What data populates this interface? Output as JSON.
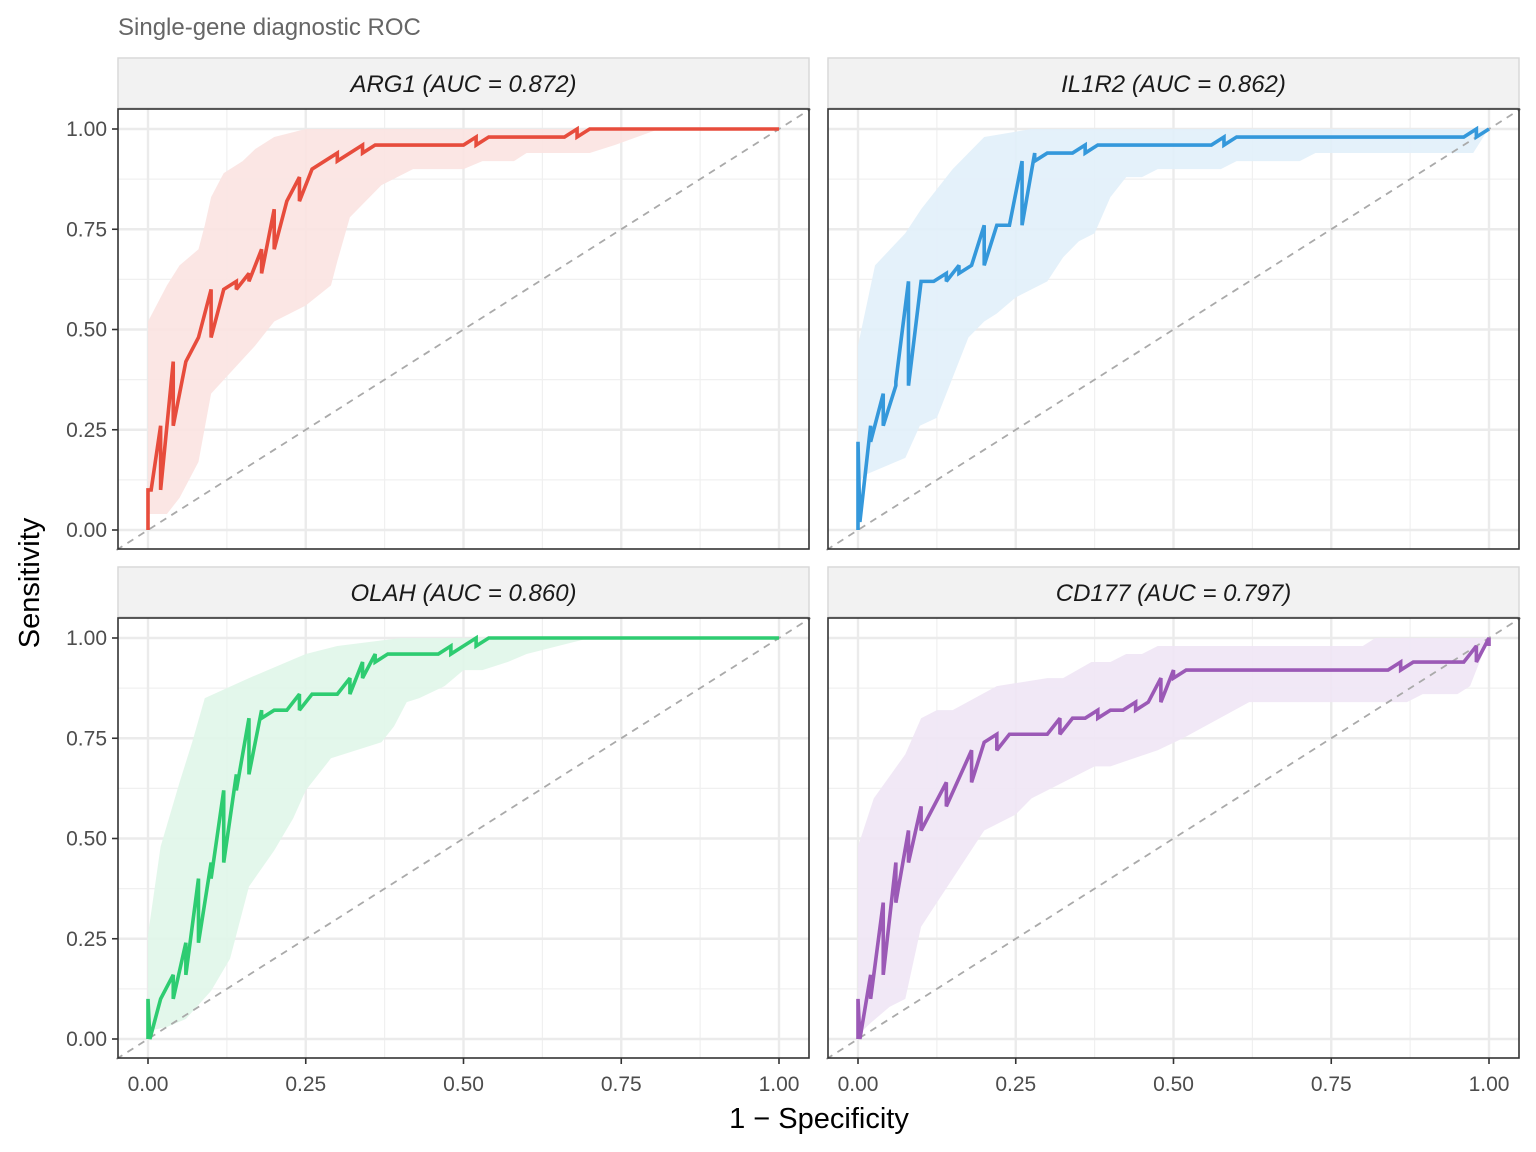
{
  "chart_data": {
    "type": "line",
    "subtitle": "Single-gene diagnostic ROC",
    "xlabel": "1 − Specificity",
    "ylabel": "Sensitivity",
    "xlim": [
      0,
      1
    ],
    "ylim": [
      0,
      1
    ],
    "x_ticks": [
      "0.00",
      "0.25",
      "0.50",
      "0.75",
      "1.00"
    ],
    "y_ticks": [
      "0.00",
      "0.25",
      "0.50",
      "0.75",
      "1.00"
    ],
    "x_tick_values": [
      0,
      0.25,
      0.5,
      0.75,
      1
    ],
    "y_tick_values": [
      0,
      0.25,
      0.5,
      0.75,
      1
    ],
    "grid": true,
    "reference_line": {
      "style": "dashed",
      "color": "#aaaaaa",
      "from": [
        0,
        0
      ],
      "to": [
        1,
        1
      ]
    },
    "panels": [
      {
        "gene": "ARG1",
        "strip_label": "ARG1 (AUC = 0.872)",
        "auc": 0.872,
        "color": "#e74c3c",
        "band_color": "#fbe3e1",
        "roc": [
          [
            0,
            0
          ],
          [
            0,
            0.1
          ],
          [
            0.005,
            0.1
          ],
          [
            0.02,
            0.26
          ],
          [
            0.02,
            0.1
          ],
          [
            0.04,
            0.42
          ],
          [
            0.04,
            0.26
          ],
          [
            0.06,
            0.42
          ],
          [
            0.08,
            0.48
          ],
          [
            0.1,
            0.6
          ],
          [
            0.1,
            0.48
          ],
          [
            0.12,
            0.6
          ],
          [
            0.14,
            0.62
          ],
          [
            0.14,
            0.6
          ],
          [
            0.16,
            0.64
          ],
          [
            0.16,
            0.62
          ],
          [
            0.18,
            0.7
          ],
          [
            0.18,
            0.64
          ],
          [
            0.2,
            0.8
          ],
          [
            0.2,
            0.7
          ],
          [
            0.22,
            0.82
          ],
          [
            0.24,
            0.88
          ],
          [
            0.24,
            0.82
          ],
          [
            0.26,
            0.9
          ],
          [
            0.28,
            0.92
          ],
          [
            0.3,
            0.94
          ],
          [
            0.3,
            0.92
          ],
          [
            0.34,
            0.96
          ],
          [
            0.34,
            0.94
          ],
          [
            0.36,
            0.96
          ],
          [
            0.5,
            0.96
          ],
          [
            0.52,
            0.98
          ],
          [
            0.52,
            0.96
          ],
          [
            0.54,
            0.98
          ],
          [
            0.66,
            0.98
          ],
          [
            0.68,
            1.0
          ],
          [
            0.68,
            0.98
          ],
          [
            0.7,
            1.0
          ],
          [
            1.0,
            1.0
          ]
        ],
        "ci_upper": [
          [
            0,
            0.52
          ],
          [
            0.03,
            0.61
          ],
          [
            0.05,
            0.66
          ],
          [
            0.08,
            0.7
          ],
          [
            0.09,
            0.76
          ],
          [
            0.1,
            0.83
          ],
          [
            0.12,
            0.89
          ],
          [
            0.15,
            0.92
          ],
          [
            0.17,
            0.95
          ],
          [
            0.2,
            0.98
          ],
          [
            0.25,
            1.0
          ],
          [
            1.0,
            1.0
          ]
        ],
        "ci_lower": [
          [
            0,
            0.04
          ],
          [
            0.03,
            0.04
          ],
          [
            0.05,
            0.08
          ],
          [
            0.08,
            0.17
          ],
          [
            0.1,
            0.34
          ],
          [
            0.17,
            0.46
          ],
          [
            0.2,
            0.52
          ],
          [
            0.25,
            0.56
          ],
          [
            0.29,
            0.61
          ],
          [
            0.3,
            0.67
          ],
          [
            0.32,
            0.78
          ],
          [
            0.37,
            0.86
          ],
          [
            0.42,
            0.9
          ],
          [
            0.5,
            0.9
          ],
          [
            0.53,
            0.92
          ],
          [
            0.58,
            0.92
          ],
          [
            0.6,
            0.94
          ],
          [
            0.7,
            0.94
          ],
          [
            0.74,
            0.96
          ],
          [
            0.81,
            1.0
          ],
          [
            1.0,
            1.0
          ]
        ]
      },
      {
        "gene": "IL1R2",
        "strip_label": "IL1R2 (AUC = 0.862)",
        "auc": 0.862,
        "color": "#3498db",
        "band_color": "#e1eff9",
        "roc": [
          [
            0,
            0
          ],
          [
            0,
            0.22
          ],
          [
            0.003,
            0.02
          ],
          [
            0.02,
            0.26
          ],
          [
            0.02,
            0.22
          ],
          [
            0.04,
            0.34
          ],
          [
            0.04,
            0.26
          ],
          [
            0.06,
            0.36
          ],
          [
            0.06,
            0.37
          ],
          [
            0.08,
            0.62
          ],
          [
            0.08,
            0.36
          ],
          [
            0.1,
            0.62
          ],
          [
            0.12,
            0.62
          ],
          [
            0.14,
            0.64
          ],
          [
            0.14,
            0.62
          ],
          [
            0.16,
            0.66
          ],
          [
            0.16,
            0.64
          ],
          [
            0.18,
            0.66
          ],
          [
            0.2,
            0.76
          ],
          [
            0.2,
            0.66
          ],
          [
            0.22,
            0.76
          ],
          [
            0.24,
            0.76
          ],
          [
            0.26,
            0.92
          ],
          [
            0.26,
            0.76
          ],
          [
            0.28,
            0.94
          ],
          [
            0.28,
            0.92
          ],
          [
            0.3,
            0.94
          ],
          [
            0.34,
            0.94
          ],
          [
            0.36,
            0.96
          ],
          [
            0.36,
            0.94
          ],
          [
            0.38,
            0.96
          ],
          [
            0.56,
            0.96
          ],
          [
            0.58,
            0.98
          ],
          [
            0.58,
            0.96
          ],
          [
            0.6,
            0.98
          ],
          [
            0.96,
            0.98
          ],
          [
            0.98,
            1.0
          ],
          [
            0.98,
            0.98
          ],
          [
            1.0,
            1.0
          ]
        ],
        "ci_upper": [
          [
            0,
            0.46
          ],
          [
            0.027,
            0.66
          ],
          [
            0.075,
            0.74
          ],
          [
            0.1,
            0.8
          ],
          [
            0.15,
            0.9
          ],
          [
            0.2,
            0.98
          ],
          [
            0.275,
            1.0
          ],
          [
            1.0,
            1.0
          ]
        ],
        "ci_lower": [
          [
            0,
            0.12
          ],
          [
            0.015,
            0.14
          ],
          [
            0.075,
            0.18
          ],
          [
            0.098,
            0.26
          ],
          [
            0.125,
            0.28
          ],
          [
            0.175,
            0.48
          ],
          [
            0.2,
            0.52
          ],
          [
            0.22,
            0.54
          ],
          [
            0.25,
            0.58
          ],
          [
            0.3,
            0.62
          ],
          [
            0.325,
            0.68
          ],
          [
            0.35,
            0.72
          ],
          [
            0.375,
            0.74
          ],
          [
            0.4,
            0.83
          ],
          [
            0.425,
            0.88
          ],
          [
            0.45,
            0.88
          ],
          [
            0.475,
            0.9
          ],
          [
            0.575,
            0.9
          ],
          [
            0.6,
            0.92
          ],
          [
            0.7,
            0.92
          ],
          [
            0.725,
            0.94
          ],
          [
            0.975,
            0.94
          ],
          [
            0.995,
            0.99
          ],
          [
            1.0,
            1.0
          ]
        ]
      },
      {
        "gene": "OLAH",
        "strip_label": "OLAH (AUC = 0.860)",
        "auc": 0.86,
        "color": "#2ecc71",
        "band_color": "#e0f6e9",
        "roc": [
          [
            0,
            0
          ],
          [
            0,
            0.1
          ],
          [
            0.003,
            0.0
          ],
          [
            0.02,
            0.1
          ],
          [
            0.04,
            0.16
          ],
          [
            0.04,
            0.1
          ],
          [
            0.06,
            0.24
          ],
          [
            0.06,
            0.16
          ],
          [
            0.08,
            0.4
          ],
          [
            0.08,
            0.24
          ],
          [
            0.1,
            0.44
          ],
          [
            0.1,
            0.4
          ],
          [
            0.12,
            0.62
          ],
          [
            0.12,
            0.44
          ],
          [
            0.14,
            0.66
          ],
          [
            0.14,
            0.62
          ],
          [
            0.16,
            0.8
          ],
          [
            0.16,
            0.66
          ],
          [
            0.18,
            0.82
          ],
          [
            0.18,
            0.8
          ],
          [
            0.2,
            0.82
          ],
          [
            0.22,
            0.82
          ],
          [
            0.24,
            0.86
          ],
          [
            0.24,
            0.82
          ],
          [
            0.26,
            0.86
          ],
          [
            0.3,
            0.86
          ],
          [
            0.32,
            0.9
          ],
          [
            0.32,
            0.86
          ],
          [
            0.34,
            0.94
          ],
          [
            0.34,
            0.9
          ],
          [
            0.36,
            0.96
          ],
          [
            0.36,
            0.94
          ],
          [
            0.38,
            0.96
          ],
          [
            0.46,
            0.96
          ],
          [
            0.48,
            0.98
          ],
          [
            0.48,
            0.96
          ],
          [
            0.5,
            0.98
          ],
          [
            0.52,
            1.0
          ],
          [
            0.52,
            0.98
          ],
          [
            0.54,
            1.0
          ],
          [
            1.0,
            1.0
          ]
        ],
        "ci_upper": [
          [
            0,
            0.26
          ],
          [
            0.02,
            0.48
          ],
          [
            0.05,
            0.64
          ],
          [
            0.07,
            0.74
          ],
          [
            0.09,
            0.85
          ],
          [
            0.16,
            0.9
          ],
          [
            0.25,
            0.96
          ],
          [
            0.3,
            0.98
          ],
          [
            0.4,
            1.0
          ],
          [
            1.0,
            1.0
          ]
        ],
        "ci_lower": [
          [
            0,
            0.02
          ],
          [
            0.03,
            0.03
          ],
          [
            0.06,
            0.05
          ],
          [
            0.1,
            0.12
          ],
          [
            0.13,
            0.2
          ],
          [
            0.16,
            0.38
          ],
          [
            0.2,
            0.47
          ],
          [
            0.23,
            0.55
          ],
          [
            0.25,
            0.62
          ],
          [
            0.29,
            0.7
          ],
          [
            0.37,
            0.74
          ],
          [
            0.39,
            0.78
          ],
          [
            0.41,
            0.84
          ],
          [
            0.43,
            0.85
          ],
          [
            0.47,
            0.88
          ],
          [
            0.5,
            0.92
          ],
          [
            0.53,
            0.92
          ],
          [
            0.57,
            0.94
          ],
          [
            0.6,
            0.96
          ],
          [
            0.65,
            0.98
          ],
          [
            0.7,
            1.0
          ],
          [
            1.0,
            1.0
          ]
        ]
      },
      {
        "gene": "CD177",
        "strip_label": "CD177 (AUC = 0.797)",
        "auc": 0.797,
        "color": "#9b59b6",
        "band_color": "#efe6f5",
        "roc": [
          [
            0,
            0
          ],
          [
            0,
            0.1
          ],
          [
            0.003,
            0.0
          ],
          [
            0.02,
            0.16
          ],
          [
            0.02,
            0.1
          ],
          [
            0.04,
            0.34
          ],
          [
            0.04,
            0.16
          ],
          [
            0.06,
            0.44
          ],
          [
            0.06,
            0.34
          ],
          [
            0.08,
            0.52
          ],
          [
            0.08,
            0.44
          ],
          [
            0.1,
            0.58
          ],
          [
            0.1,
            0.52
          ],
          [
            0.14,
            0.64
          ],
          [
            0.14,
            0.58
          ],
          [
            0.18,
            0.72
          ],
          [
            0.18,
            0.64
          ],
          [
            0.2,
            0.74
          ],
          [
            0.22,
            0.76
          ],
          [
            0.22,
            0.72
          ],
          [
            0.24,
            0.76
          ],
          [
            0.3,
            0.76
          ],
          [
            0.32,
            0.8
          ],
          [
            0.32,
            0.76
          ],
          [
            0.34,
            0.8
          ],
          [
            0.36,
            0.8
          ],
          [
            0.38,
            0.82
          ],
          [
            0.38,
            0.8
          ],
          [
            0.4,
            0.82
          ],
          [
            0.42,
            0.82
          ],
          [
            0.44,
            0.84
          ],
          [
            0.44,
            0.82
          ],
          [
            0.46,
            0.84
          ],
          [
            0.48,
            0.9
          ],
          [
            0.48,
            0.84
          ],
          [
            0.5,
            0.92
          ],
          [
            0.5,
            0.9
          ],
          [
            0.52,
            0.92
          ],
          [
            0.84,
            0.92
          ],
          [
            0.86,
            0.94
          ],
          [
            0.86,
            0.92
          ],
          [
            0.88,
            0.94
          ],
          [
            0.96,
            0.94
          ],
          [
            0.98,
            0.98
          ],
          [
            0.98,
            0.94
          ],
          [
            1.0,
            1.0
          ],
          [
            1.0,
            0.98
          ]
        ],
        "ci_upper": [
          [
            0,
            0.48
          ],
          [
            0.025,
            0.6
          ],
          [
            0.075,
            0.71
          ],
          [
            0.1,
            0.8
          ],
          [
            0.125,
            0.82
          ],
          [
            0.15,
            0.82
          ],
          [
            0.22,
            0.88
          ],
          [
            0.3,
            0.9
          ],
          [
            0.325,
            0.9
          ],
          [
            0.37,
            0.94
          ],
          [
            0.4,
            0.94
          ],
          [
            0.425,
            0.96
          ],
          [
            0.45,
            0.96
          ],
          [
            0.475,
            0.98
          ],
          [
            0.8,
            0.98
          ],
          [
            0.82,
            1.0
          ],
          [
            1.0,
            1.0
          ]
        ],
        "ci_lower": [
          [
            0,
            0.01
          ],
          [
            0.02,
            0.04
          ],
          [
            0.05,
            0.08
          ],
          [
            0.075,
            0.1
          ],
          [
            0.1,
            0.28
          ],
          [
            0.125,
            0.34
          ],
          [
            0.2,
            0.52
          ],
          [
            0.25,
            0.56
          ],
          [
            0.275,
            0.6
          ],
          [
            0.375,
            0.68
          ],
          [
            0.4,
            0.68
          ],
          [
            0.475,
            0.72
          ],
          [
            0.515,
            0.75
          ],
          [
            0.62,
            0.84
          ],
          [
            0.87,
            0.84
          ],
          [
            0.895,
            0.86
          ],
          [
            0.95,
            0.86
          ],
          [
            0.97,
            0.88
          ],
          [
            0.985,
            0.94
          ],
          [
            1.0,
            1.0
          ]
        ]
      }
    ]
  }
}
